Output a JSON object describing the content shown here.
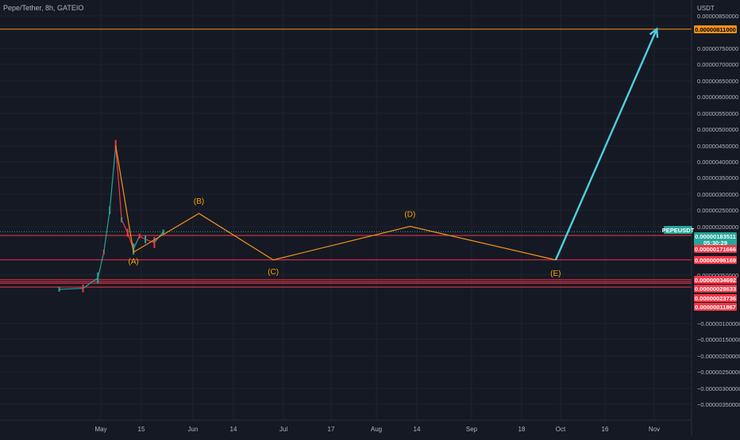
{
  "header": {
    "symbol_title": "Pepe/Tether, 8h, GATEIO"
  },
  "price_axis": {
    "unit": "USDT",
    "labels": [
      "0.00000850000",
      "0.00000750000",
      "0.00000700000",
      "0.00000650000",
      "0.00000600000",
      "0.00000550000",
      "0.00000500000",
      "0.00000450000",
      "0.00000400000",
      "0.00000350000",
      "0.00000300000",
      "0.00000250000",
      "0.00000200000",
      "0.00000050000",
      "−0.00000100000",
      "−0.00000150000",
      "−0.00000200000",
      "−0.00000250000",
      "−0.00000300000",
      "−0.00000350000"
    ]
  },
  "time_axis": {
    "labels": [
      "May",
      "15",
      "Jun",
      "14",
      "Jul",
      "17",
      "Aug",
      "14",
      "Sep",
      "18",
      "Oct",
      "16",
      "Nov"
    ]
  },
  "wave_labels": [
    "(A)",
    "(B)",
    "(C)",
    "(D)",
    "(E)"
  ],
  "price_tags": [
    {
      "text": "0.00000811000",
      "bg": "#f7931a",
      "fg": "#000000"
    },
    {
      "text": "PEPEUSDT",
      "bg": "#26a69a",
      "fg": "#ffffff"
    },
    {
      "text": "0.00000183511",
      "bg": "#26a69a",
      "fg": "#ffffff"
    },
    {
      "text": "05:30:29",
      "bg": "#26a69a",
      "fg": "#ffffff"
    },
    {
      "text": "0.00000171666",
      "bg": "#f23645",
      "fg": "#ffffff"
    },
    {
      "text": "0.00000096169",
      "bg": "#f23645",
      "fg": "#ffffff"
    },
    {
      "text": "0.00000034692",
      "bg": "#f23645",
      "fg": "#ffffff"
    },
    {
      "text": "0.00000028633",
      "bg": "#f23645",
      "fg": "#ffffff"
    },
    {
      "text": "0.00000023736",
      "bg": "#f23645",
      "fg": "#ffffff"
    },
    {
      "text": "0.00000011867",
      "bg": "#f23645",
      "fg": "#ffffff"
    }
  ],
  "colors": {
    "background": "#151924",
    "grid": "#1f2331",
    "support_lines": "#f23645",
    "target_line": "#f7931a",
    "wave_pattern": "#f7931a",
    "projection_arrow": "#4dd0e1",
    "candles_up": "#26a69a",
    "candles_down": "#f23645"
  },
  "chart_data": {
    "type": "line",
    "symbol": "PEPEUSDT",
    "interval": "8h",
    "exchange": "GATEIO",
    "last_price": 1.83511e-06,
    "target_price": 8.11e-06,
    "horizontal_levels": [
      8.11e-06,
      1.71666e-06,
      9.6169e-07,
      3.4692e-07,
      2.8633e-07,
      2.3736e-07,
      1.1867e-07
    ],
    "wave_points": [
      {
        "label": "",
        "date": "2023-05-06",
        "price": 4.5e-06
      },
      {
        "label": "(A)",
        "date": "2023-05-12",
        "price": 1.2e-06
      },
      {
        "label": "(B)",
        "date": "2023-06-03",
        "price": 2.4e-06
      },
      {
        "label": "(C)",
        "date": "2023-06-28",
        "price": 9.6e-07
      },
      {
        "label": "(D)",
        "date": "2023-08-13",
        "price": 2e-06
      },
      {
        "label": "(E)",
        "date": "2023-10-01",
        "price": 9.6e-07
      }
    ],
    "projection": [
      {
        "date": "2023-10-01",
        "price": 9.6e-07
      },
      {
        "date": "2023-11-04",
        "price": 8.11e-06
      }
    ],
    "price_history": [
      {
        "date": "2023-04-17",
        "price": 5e-08
      },
      {
        "date": "2023-04-25",
        "price": 8e-08
      },
      {
        "date": "2023-04-30",
        "price": 4e-07
      },
      {
        "date": "2023-05-02",
        "price": 1.2e-06
      },
      {
        "date": "2023-05-04",
        "price": 2.5e-06
      },
      {
        "date": "2023-05-06",
        "price": 4.5e-06
      },
      {
        "date": "2023-05-08",
        "price": 2.2e-06
      },
      {
        "date": "2023-05-10",
        "price": 1.8e-06
      },
      {
        "date": "2023-05-12",
        "price": 1.3e-06
      },
      {
        "date": "2023-05-14",
        "price": 1.7e-06
      },
      {
        "date": "2023-05-16",
        "price": 1.6e-06
      },
      {
        "date": "2023-05-19",
        "price": 1.5e-06
      },
      {
        "date": "2023-05-22",
        "price": 1.83e-06
      }
    ]
  }
}
